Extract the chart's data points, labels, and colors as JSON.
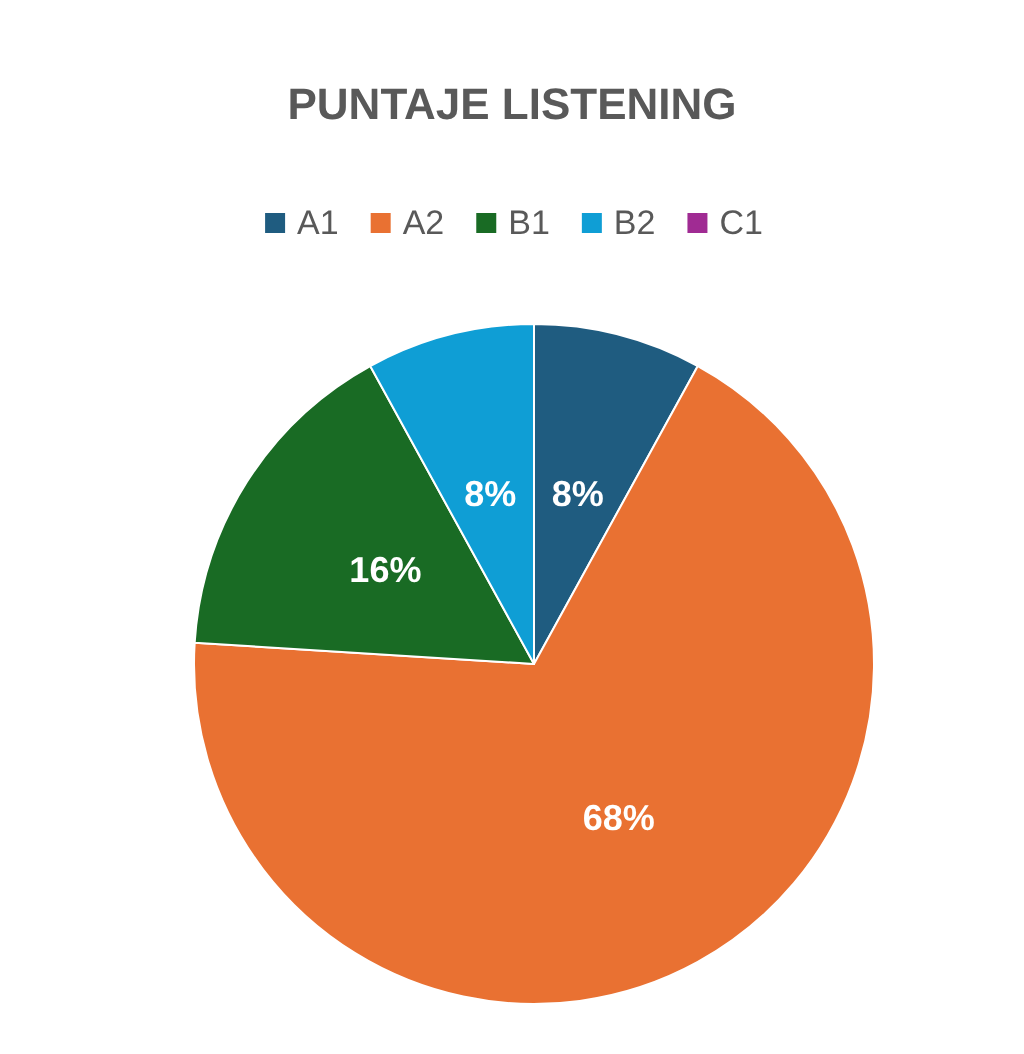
{
  "chart_data": {
    "type": "pie",
    "title": "PUNTAJE LISTENING",
    "categories": [
      "A1",
      "A2",
      "B1",
      "B2",
      "C1"
    ],
    "values": [
      8,
      68,
      16,
      8,
      0
    ],
    "colors": [
      "#1f5c80",
      "#e97132",
      "#196b24",
      "#0f9ed5",
      "#a02b93"
    ],
    "value_labels": [
      "8%",
      "68%",
      "16%",
      "8%",
      null
    ],
    "legend": "top"
  }
}
